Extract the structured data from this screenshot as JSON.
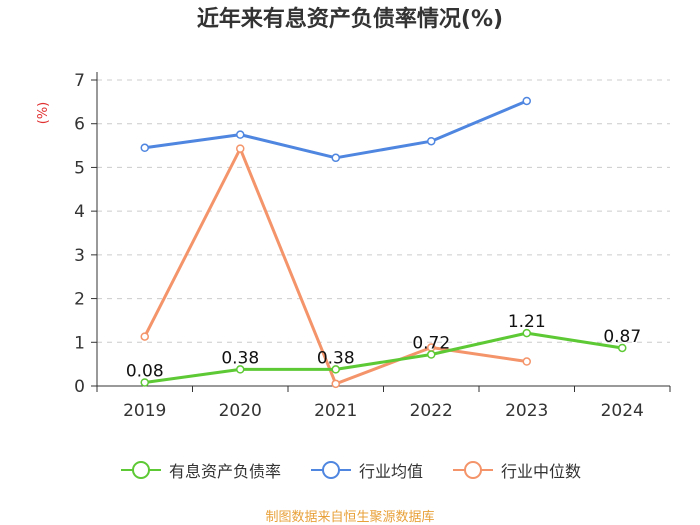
{
  "chart_data": {
    "type": "line",
    "title": "近年来有息资产负债率情况(%)",
    "ylabel": "(%)",
    "xlabel": "",
    "categories": [
      "2019",
      "2020",
      "2021",
      "2022",
      "2023",
      "2024"
    ],
    "ylim": [
      0,
      7
    ],
    "yticks": [
      0,
      1,
      2,
      3,
      4,
      5,
      6,
      7
    ],
    "grid": true,
    "legend_position": "bottom",
    "series": [
      {
        "name": "有息资产负债率",
        "color": "#5dc934",
        "values": [
          0.08,
          0.38,
          0.38,
          0.72,
          1.21,
          0.87
        ],
        "labels": [
          "0.08",
          "0.38",
          "0.38",
          "0.72",
          "1.21",
          "0.87"
        ]
      },
      {
        "name": "行业均值",
        "color": "#4f86e0",
        "values": [
          5.45,
          5.75,
          5.22,
          5.6,
          6.52,
          null
        ]
      },
      {
        "name": "行业中位数",
        "color": "#f4946a",
        "values": [
          1.13,
          5.43,
          0.05,
          0.88,
          0.56,
          null
        ]
      }
    ]
  },
  "source_note": "制图数据来自恒生聚源数据库",
  "colors": {
    "axis": "#333333",
    "grid": "#cccccc",
    "ylabel": "#e03030"
  }
}
